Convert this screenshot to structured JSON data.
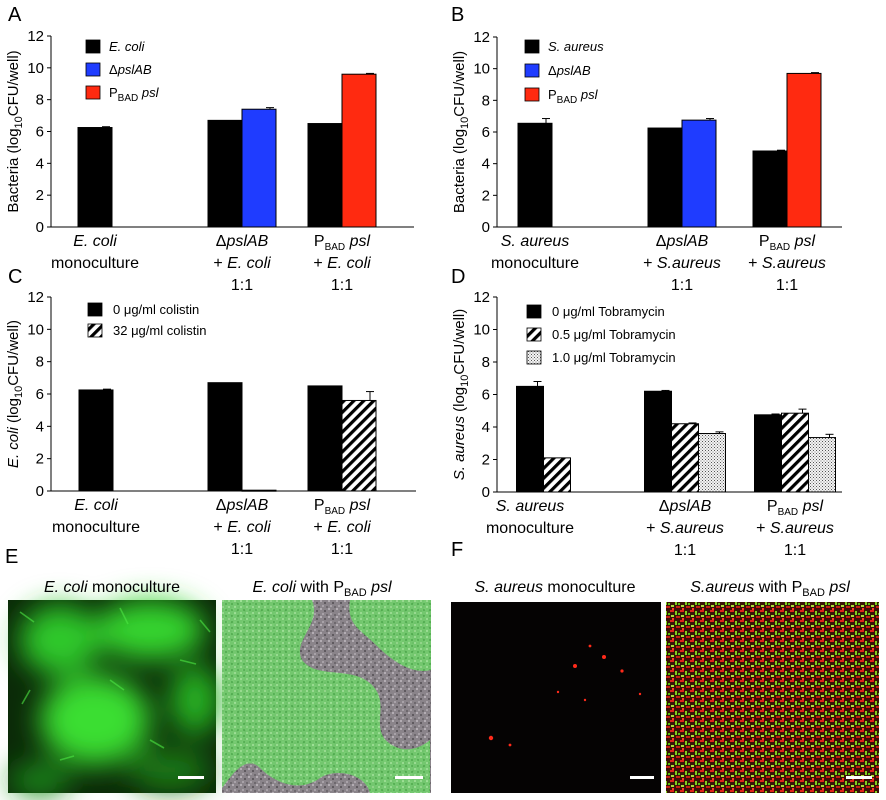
{
  "panels": {
    "A": "A",
    "B": "B",
    "C": "C",
    "D": "D",
    "E": "E",
    "F": "F"
  },
  "colors": {
    "black": "#000000",
    "blue": "#1f3cff",
    "red": "#ff2a10"
  },
  "chart_data": [
    {
      "id": "A",
      "type": "bar",
      "ylabel": "Bacteria (log10CFU/well)",
      "ylim": [
        0,
        12
      ],
      "yticks": [
        0,
        2,
        4,
        6,
        8,
        10,
        12
      ],
      "categories": [
        [
          "E. coli",
          "monoculture"
        ],
        [
          "ΔpslAB",
          "+ E. coli",
          "1:1"
        ],
        [
          "PBAD psl",
          "+ E. coli",
          "1:1"
        ]
      ],
      "series": [
        {
          "name": "E. coli",
          "values": [
            6.25,
            6.7,
            6.5
          ],
          "errors": [
            0.05,
            0.0,
            0.0
          ],
          "color": "#000000"
        },
        {
          "name": "ΔpslAB",
          "values": [
            null,
            7.4,
            null
          ],
          "errors": [
            null,
            0.1,
            null
          ],
          "color": "#1f3cff"
        },
        {
          "name": "PBAD psl",
          "values": [
            null,
            null,
            9.6
          ],
          "errors": [
            null,
            null,
            0.05
          ],
          "color": "#ff2a10"
        }
      ],
      "legend": [
        "E. coli",
        "ΔpslAB",
        "PBAD psl"
      ]
    },
    {
      "id": "B",
      "type": "bar",
      "ylabel": "Bacteria (log10CFU/well)",
      "ylim": [
        0,
        12
      ],
      "yticks": [
        0,
        2,
        4,
        6,
        8,
        10,
        12
      ],
      "categories": [
        [
          "S. aureus",
          "monoculture"
        ],
        [
          "ΔpslAB",
          "+ S.aureus",
          "1:1"
        ],
        [
          "PBAD psl",
          "+ S.aureus",
          "1:1"
        ]
      ],
      "series": [
        {
          "name": "S. aureus",
          "values": [
            6.55,
            6.25,
            4.8
          ],
          "errors": [
            0.3,
            0.0,
            0.05
          ],
          "color": "#000000"
        },
        {
          "name": "ΔpslAB",
          "values": [
            null,
            6.75,
            null
          ],
          "errors": [
            null,
            0.1,
            null
          ],
          "color": "#1f3cff"
        },
        {
          "name": "PBAD psl",
          "values": [
            null,
            null,
            9.7
          ],
          "errors": [
            null,
            null,
            0.05
          ],
          "color": "#ff2a10"
        }
      ],
      "legend": [
        "S. aureus",
        "ΔpslAB",
        "PBAD psl"
      ]
    },
    {
      "id": "C",
      "type": "bar",
      "ylabel": "E. coli (log10CFU/well)",
      "ylim": [
        0,
        12
      ],
      "yticks": [
        0,
        2,
        4,
        6,
        8,
        10,
        12
      ],
      "categories": [
        [
          "E. coli",
          "monoculture"
        ],
        [
          "ΔpslAB",
          "+ E. coli",
          "1:1"
        ],
        [
          "PBAD psl",
          "+ E. coli",
          "1:1"
        ]
      ],
      "series": [
        {
          "name": "0 μg/ml colistin",
          "values": [
            6.25,
            6.7,
            6.5
          ],
          "errors": [
            0.05,
            0.0,
            0.0
          ],
          "pattern": "solid"
        },
        {
          "name": "32 μg/ml colistin",
          "values": [
            null,
            0.05,
            5.6
          ],
          "errors": [
            null,
            0.0,
            0.55
          ],
          "pattern": "hatch"
        }
      ],
      "legend": [
        "0 μg/ml colistin",
        "32 μg/ml colistin"
      ]
    },
    {
      "id": "D",
      "type": "bar",
      "ylabel": "S. aureus (log10CFU/well)",
      "ylim": [
        0,
        12
      ],
      "yticks": [
        0,
        2,
        4,
        6,
        8,
        10,
        12
      ],
      "categories": [
        [
          "S. aureus",
          "monoculture"
        ],
        [
          "ΔpslAB",
          "+ S.aureus",
          "1:1"
        ],
        [
          "PBAD psl",
          "+ S.aureus",
          "1:1"
        ]
      ],
      "series": [
        {
          "name": "0 μg/ml Tobramycin",
          "values": [
            6.5,
            6.2,
            4.75
          ],
          "errors": [
            0.3,
            0.05,
            0.05
          ],
          "pattern": "solid"
        },
        {
          "name": "0.5 μg/ml Tobramycin",
          "values": [
            2.1,
            4.2,
            4.85
          ],
          "errors": [
            0.0,
            0.05,
            0.25
          ],
          "pattern": "hatch"
        },
        {
          "name": "1.0 μg/ml Tobramycin",
          "values": [
            null,
            3.6,
            3.35
          ],
          "errors": [
            null,
            0.1,
            0.2
          ],
          "pattern": "dots"
        }
      ],
      "legend": [
        "0 μg/ml Tobramycin",
        "0.5 μg/ml Tobramycin",
        "1.0 μg/ml Tobramycin"
      ]
    }
  ],
  "micrographs": [
    {
      "id": "E1",
      "title": "E. coli monoculture"
    },
    {
      "id": "E2",
      "title": "E. coli with PBAD psl"
    },
    {
      "id": "F1",
      "title": "S. aureus monoculture"
    },
    {
      "id": "F2",
      "title": "S.aureus with PBAD psl"
    }
  ]
}
